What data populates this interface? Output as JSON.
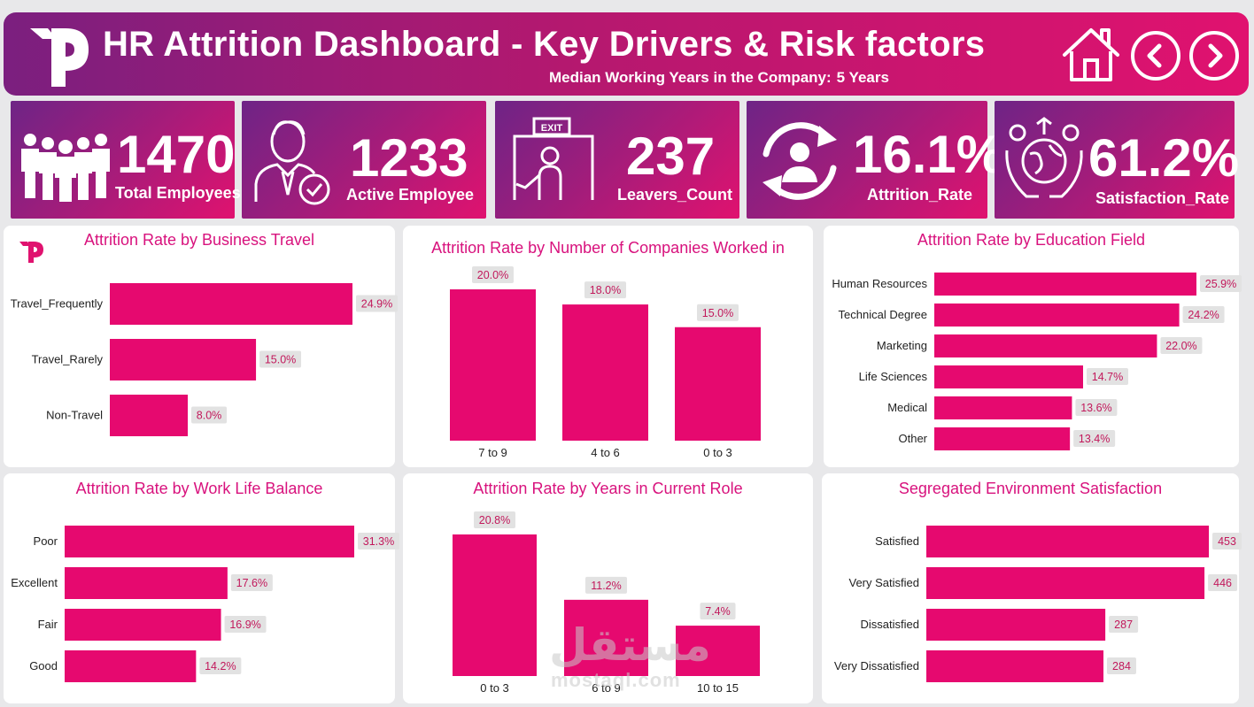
{
  "header": {
    "title": "HR Attrition Dashboard - Key Drivers & Risk factors",
    "subtitle_label": "Median Working Years in the Company:",
    "subtitle_value": "5 Years"
  },
  "kpis": [
    {
      "value": "1470",
      "label": "Total Employees",
      "icon": "people-group-icon"
    },
    {
      "value": "1233",
      "label": "Active Employee",
      "icon": "employee-check-icon"
    },
    {
      "value": "237",
      "label": "Leavers_Count",
      "icon": "exit-door-icon"
    },
    {
      "value": "16.1%",
      "label": "Attrition_Rate",
      "icon": "person-cycle-icon"
    },
    {
      "value": "61.2%",
      "label": "Satisfaction_Rate",
      "icon": "hands-globe-icon"
    }
  ],
  "chart_data": [
    {
      "id": "travel",
      "type": "bar",
      "orientation": "horizontal",
      "title": "Attrition Rate by Business Travel",
      "categories": [
        "Travel_Frequently",
        "Travel_Rarely",
        "Non-Travel"
      ],
      "values": [
        24.9,
        15.0,
        8.0
      ],
      "labels": [
        "24.9%",
        "15.0%",
        "8.0%"
      ],
      "xlim": [
        0,
        24.9
      ]
    },
    {
      "id": "companies",
      "type": "bar",
      "orientation": "vertical",
      "title": "Attrition Rate by Number of Companies Worked in",
      "categories": [
        "7 to 9",
        "4 to 6",
        "0 to 3"
      ],
      "values": [
        20.0,
        18.0,
        15.0
      ],
      "labels": [
        "20.0%",
        "18.0%",
        "15.0%"
      ],
      "ylim": [
        0,
        20.0
      ]
    },
    {
      "id": "education",
      "type": "bar",
      "orientation": "horizontal",
      "title": "Attrition Rate by Education Field",
      "categories": [
        "Human Resources",
        "Technical Degree",
        "Marketing",
        "Life Sciences",
        "Medical",
        "Other"
      ],
      "values": [
        25.9,
        24.2,
        22.0,
        14.7,
        13.6,
        13.4
      ],
      "labels": [
        "25.9%",
        "24.2%",
        "22.0%",
        "14.7%",
        "13.6%",
        "13.4%"
      ],
      "xlim": [
        0,
        25.9
      ]
    },
    {
      "id": "worklife",
      "type": "bar",
      "orientation": "horizontal",
      "title": "Attrition Rate by Work Life Balance",
      "categories": [
        "Poor",
        "Excellent",
        "Fair",
        "Good"
      ],
      "values": [
        31.3,
        17.6,
        16.9,
        14.2
      ],
      "labels": [
        "31.3%",
        "17.6%",
        "16.9%",
        "14.2%"
      ],
      "xlim": [
        0,
        31.3
      ]
    },
    {
      "id": "role",
      "type": "bar",
      "orientation": "vertical",
      "title": "Attrition Rate by Years in Current Role",
      "categories": [
        "0 to 3",
        "6 to 9",
        "10 to 15"
      ],
      "values": [
        20.8,
        11.2,
        7.4
      ],
      "labels": [
        "20.8%",
        "11.2%",
        "7.4%"
      ],
      "ylim": [
        0,
        20.8
      ]
    },
    {
      "id": "environment",
      "type": "bar",
      "orientation": "horizontal",
      "title": "Segregated Environment Satisfaction",
      "categories": [
        "Satisfied",
        "Very Satisfied",
        "Dissatisfied",
        "Very Dissatisfied"
      ],
      "values": [
        453,
        446,
        287,
        284
      ],
      "labels": [
        "453",
        "446",
        "287",
        "284"
      ],
      "xlim": [
        0,
        453
      ]
    }
  ],
  "watermark": {
    "arabic": "مستقل",
    "latin": "mostaql.com"
  }
}
